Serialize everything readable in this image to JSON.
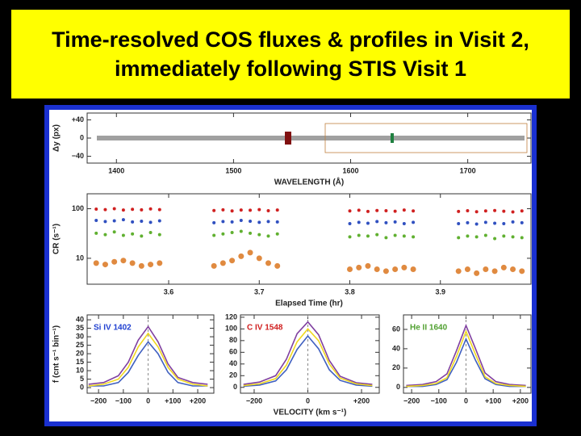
{
  "title": "Time-resolved COS fluxes & profiles in Visit 2, immediately following STIS Visit 1",
  "chart_data": [
    {
      "type": "spectrum",
      "x_label": "WAVELENGTH (Å)",
      "y_label": "Δy (px)",
      "xlim": [
        1375,
        1754
      ],
      "xticks": [
        1400,
        1500,
        1600,
        1700
      ],
      "ylim": [
        -55,
        55
      ],
      "yticks": [
        {
          "value": 40,
          "label": "+40"
        },
        0,
        {
          "value": -40,
          "label": "−40"
        }
      ]
    },
    {
      "type": "scatter",
      "x_label": "Elapsed Time (hr)",
      "y_label": "CR (s⁻¹)",
      "log_y": true,
      "xlim": [
        3.51,
        4.0
      ],
      "xticks": [
        3.6,
        3.7,
        3.8,
        3.9
      ],
      "ylim": [
        3,
        200
      ],
      "yticks": [
        10,
        100
      ],
      "x": [
        3.52,
        3.53,
        3.54,
        3.55,
        3.56,
        3.57,
        3.58,
        3.59,
        3.65,
        3.66,
        3.67,
        3.68,
        3.69,
        3.7,
        3.71,
        3.72,
        3.8,
        3.81,
        3.82,
        3.83,
        3.84,
        3.85,
        3.86,
        3.87,
        3.92,
        3.93,
        3.94,
        3.95,
        3.96,
        3.97,
        3.98,
        3.99
      ],
      "series": [
        {
          "color": "#d02020",
          "values": [
            98,
            96,
            100,
            94,
            97,
            95,
            99,
            96,
            92,
            95,
            90,
            94,
            93,
            96,
            91,
            94,
            90,
            93,
            88,
            92,
            91,
            89,
            94,
            90,
            88,
            91,
            87,
            90,
            92,
            89,
            86,
            90
          ]
        },
        {
          "color": "#3050c0",
          "values": [
            58,
            55,
            57,
            60,
            54,
            56,
            53,
            57,
            52,
            55,
            54,
            58,
            56,
            53,
            55,
            54,
            50,
            53,
            51,
            55,
            52,
            54,
            50,
            53,
            50,
            52,
            49,
            53,
            51,
            50,
            54,
            52
          ]
        },
        {
          "color": "#60b030",
          "values": [
            32,
            30,
            34,
            29,
            31,
            28,
            33,
            30,
            29,
            31,
            33,
            35,
            32,
            30,
            28,
            31,
            27,
            29,
            28,
            30,
            26,
            29,
            28,
            27,
            26,
            28,
            27,
            29,
            25,
            28,
            27,
            26
          ]
        },
        {
          "color": "#e08a40",
          "values": [
            8,
            7.5,
            8.5,
            9,
            8,
            7,
            7.5,
            8,
            7,
            8,
            9,
            11,
            13,
            10,
            8,
            7,
            6,
            6.5,
            7,
            6,
            5.5,
            6,
            6.5,
            6,
            5.5,
            6,
            5,
            6,
            5.5,
            6.5,
            6,
            5.5
          ]
        }
      ]
    },
    {
      "type": "line",
      "annotation": "Si IV 1402",
      "annotation_color": "#2040d0",
      "y_label": "f (cnt s⁻¹ bin⁻¹)",
      "xlim": [
        -246,
        265
      ],
      "xticks": [
        {
          "value": -200,
          "label": "−200"
        },
        {
          "value": -100,
          "label": "−100"
        },
        0,
        {
          "value": 100,
          "label": "+100"
        },
        {
          "value": 200,
          "label": "+200"
        }
      ],
      "ylim": [
        -3.3,
        42.9
      ],
      "yticks": [
        0,
        5,
        10,
        15,
        20,
        25,
        30,
        35,
        40
      ],
      "x": [
        -240,
        -180,
        -120,
        -80,
        -40,
        0,
        40,
        80,
        120,
        180,
        240
      ],
      "series": [
        {
          "color": "#8040a0",
          "values": [
            2,
            3,
            7,
            15,
            28,
            36,
            27,
            14,
            6,
            3,
            2
          ]
        },
        {
          "color": "#4060c0",
          "values": [
            1,
            1,
            3,
            9,
            19,
            27,
            20,
            9,
            3,
            1,
            1
          ]
        },
        {
          "color": "#f0d820",
          "values": [
            1,
            2,
            5,
            12,
            24,
            32,
            24,
            12,
            5,
            2,
            1
          ]
        }
      ]
    },
    {
      "type": "line",
      "annotation": "C IV 1548",
      "annotation_color": "#d02020",
      "x_label": "VELOCITY (km s⁻¹)",
      "xlim": [
        -251,
        266
      ],
      "xticks": [
        {
          "value": -200,
          "label": "−200"
        },
        0,
        {
          "value": 200,
          "label": "+200"
        }
      ],
      "ylim": [
        -10,
        124
      ],
      "yticks": [
        0,
        20,
        40,
        60,
        80,
        100,
        120
      ],
      "x": [
        -240,
        -180,
        -120,
        -80,
        -40,
        0,
        40,
        80,
        120,
        180,
        240
      ],
      "series": [
        {
          "color": "#8040a0",
          "values": [
            5,
            9,
            20,
            48,
            92,
            112,
            90,
            46,
            19,
            8,
            5
          ]
        },
        {
          "color": "#4060c0",
          "values": [
            2,
            4,
            11,
            30,
            65,
            88,
            66,
            30,
            12,
            4,
            2
          ]
        },
        {
          "color": "#f0d820",
          "values": [
            3,
            6,
            15,
            38,
            78,
            100,
            80,
            40,
            16,
            6,
            3
          ]
        }
      ]
    },
    {
      "type": "line",
      "annotation": "He II 1640",
      "annotation_color": "#50a030",
      "xlim": [
        -230,
        239
      ],
      "xticks": [
        {
          "value": -200,
          "label": "−200"
        },
        {
          "value": -100,
          "label": "−100"
        },
        0,
        {
          "value": 100,
          "label": "+100"
        },
        {
          "value": 200,
          "label": "+200"
        }
      ],
      "ylim": [
        -6,
        75
      ],
      "yticks": [
        0,
        20,
        40,
        60
      ],
      "x": [
        -220,
        -160,
        -110,
        -70,
        -35,
        0,
        35,
        70,
        110,
        160,
        220
      ],
      "series": [
        {
          "color": "#8040a0",
          "values": [
            2,
            3,
            6,
            14,
            38,
            64,
            40,
            15,
            6,
            3,
            2
          ]
        },
        {
          "color": "#4060c0",
          "values": [
            1,
            1,
            3,
            8,
            26,
            50,
            28,
            9,
            3,
            1,
            1
          ]
        },
        {
          "color": "#f0d820",
          "values": [
            1,
            2,
            4,
            10,
            32,
            58,
            34,
            11,
            4,
            2,
            1
          ]
        }
      ]
    }
  ]
}
